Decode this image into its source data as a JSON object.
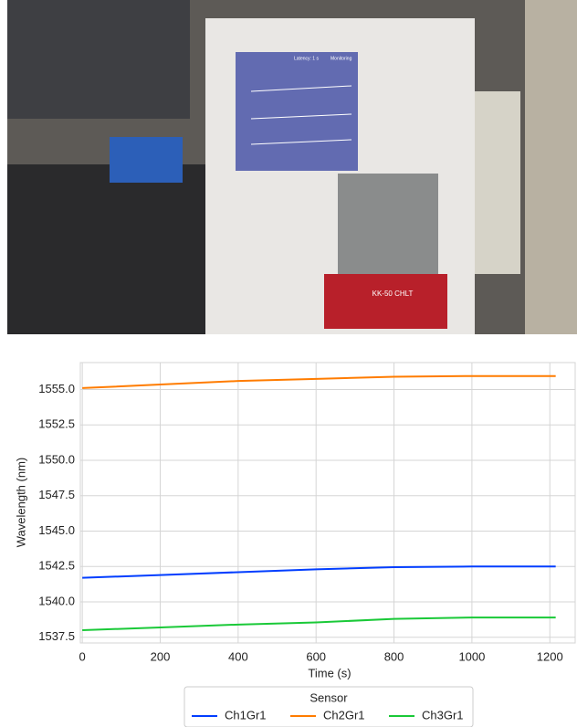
{
  "photo": {
    "overlay_labels": [
      "Latency: 1 s",
      "Monitoring"
    ],
    "brand": "KK-50 CHLT"
  },
  "chart_data": {
    "type": "line",
    "x_label": "Time (s)",
    "y_label": "Wavelength (nm)",
    "x": [
      0,
      200,
      400,
      600,
      800,
      1000,
      1215
    ],
    "series": [
      {
        "name": "Ch1Gr1",
        "color": "#023eff",
        "values": [
          1541.7,
          1541.9,
          1542.1,
          1542.3,
          1542.45,
          1542.5,
          1542.5
        ]
      },
      {
        "name": "Ch2Gr1",
        "color": "#ff7c00",
        "values": [
          1555.1,
          1555.35,
          1555.6,
          1555.75,
          1555.9,
          1555.95,
          1555.95
        ]
      },
      {
        "name": "Ch3Gr1",
        "color": "#1ac938",
        "values": [
          1538.0,
          1538.2,
          1538.4,
          1538.55,
          1538.8,
          1538.9,
          1538.9
        ]
      }
    ],
    "xlim": [
      -5,
      1265
    ],
    "xticks": [
      0,
      200,
      400,
      600,
      800,
      1000,
      1200
    ],
    "ylim": [
      1537.1,
      1556.9
    ],
    "yticks": [
      1537.5,
      {
        "value": 1540,
        "label": "1540.0"
      },
      1542.5,
      {
        "value": 1545,
        "label": "1545.0"
      },
      1547.5,
      {
        "value": 1550,
        "label": "1550.0"
      },
      1552.5,
      {
        "value": 1555,
        "label": "1555.0"
      }
    ],
    "grid": true,
    "legend_title": "Sensor",
    "legend": "bottom"
  }
}
